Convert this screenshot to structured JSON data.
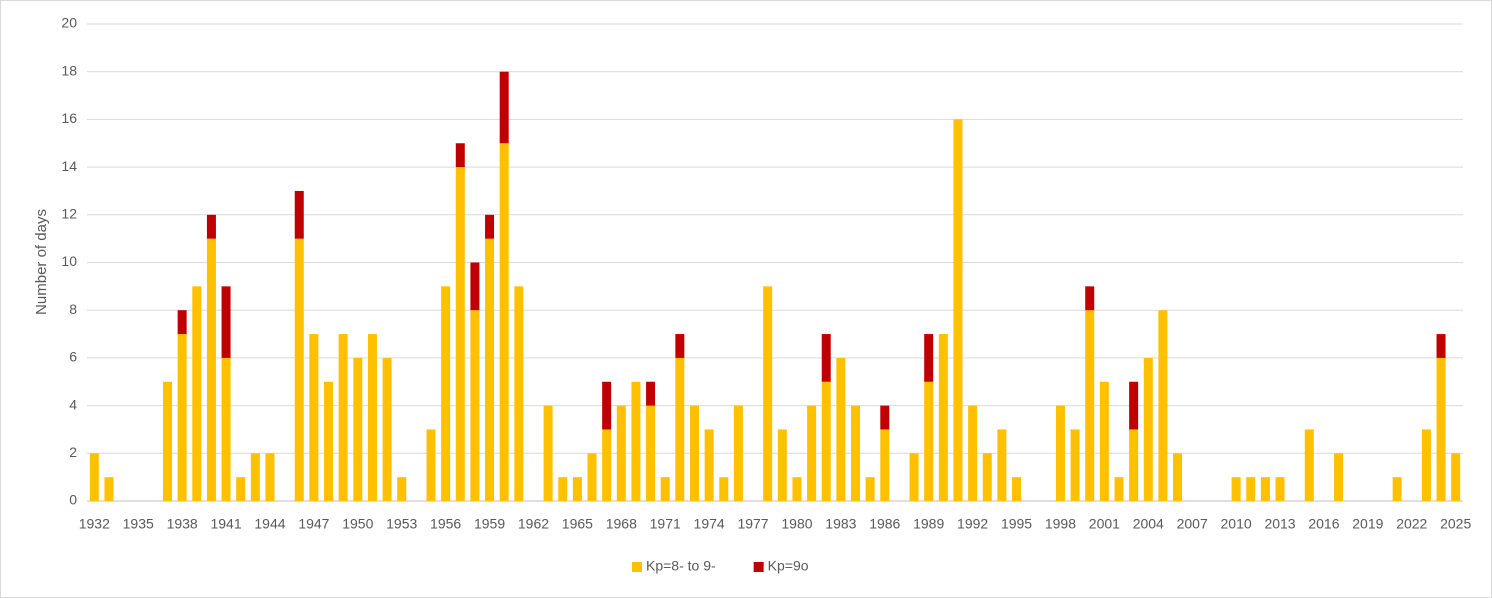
{
  "chart_data": {
    "type": "stacked_bar",
    "y_label": "Number of days",
    "categories": [
      "1932",
      null,
      null,
      "1935",
      null,
      null,
      "1938",
      null,
      null,
      "1941",
      null,
      null,
      "1944",
      null,
      null,
      "1947",
      null,
      null,
      "1950",
      null,
      null,
      "1953",
      null,
      null,
      "1956",
      null,
      null,
      "1959",
      null,
      null,
      "1962",
      null,
      null,
      "1965",
      null,
      null,
      "1968",
      null,
      null,
      "1971",
      null,
      null,
      "1974",
      null,
      null,
      "1977",
      null,
      null,
      "1980",
      null,
      null,
      "1983",
      null,
      null,
      "1986",
      null,
      null,
      "1989",
      null,
      null,
      "1992",
      null,
      null,
      "1995",
      null,
      null,
      "1998",
      null,
      null,
      "2001",
      null,
      null,
      "2004",
      null,
      null,
      "2007",
      null,
      null,
      "2010",
      null,
      null,
      "2013",
      null,
      null,
      "2016",
      null,
      null,
      "2019",
      null,
      null,
      "2022",
      null,
      null,
      "2025"
    ],
    "series": [
      {
        "name": "Kp=8- to 9-",
        "color": "#FFC000",
        "values": [
          2,
          1,
          0,
          0,
          0,
          5,
          7,
          9,
          11,
          6,
          1,
          2,
          2,
          0,
          11,
          7,
          5,
          7,
          6,
          7,
          6,
          1,
          0,
          3,
          9,
          14,
          8,
          11,
          15,
          9,
          0,
          4,
          1,
          1,
          2,
          3,
          4,
          5,
          4,
          1,
          6,
          4,
          3,
          1,
          4,
          0,
          9,
          3,
          1,
          4,
          5,
          6,
          4,
          1,
          3,
          0,
          2,
          5,
          7,
          16,
          4,
          2,
          3,
          1,
          0,
          0,
          4,
          3,
          8,
          5,
          1,
          3,
          6,
          8,
          2,
          0,
          0,
          0,
          1,
          1,
          1,
          1,
          0,
          3,
          0,
          2,
          0,
          0,
          0,
          1,
          0,
          3,
          6,
          2
        ]
      },
      {
        "name": "Kp=9o",
        "color": "#C00000",
        "values": [
          0,
          0,
          0,
          0,
          0,
          0,
          1,
          0,
          1,
          3,
          0,
          0,
          0,
          0,
          2,
          0,
          0,
          0,
          0,
          0,
          0,
          0,
          0,
          0,
          0,
          1,
          2,
          1,
          3,
          0,
          0,
          0,
          0,
          0,
          0,
          2,
          0,
          0,
          1,
          0,
          1,
          0,
          0,
          0,
          0,
          0,
          0,
          0,
          0,
          0,
          2,
          0,
          0,
          0,
          1,
          0,
          0,
          2,
          0,
          0,
          0,
          0,
          0,
          0,
          0,
          0,
          0,
          0,
          1,
          0,
          0,
          2,
          0,
          0,
          0,
          0,
          0,
          0,
          0,
          0,
          0,
          0,
          0,
          0,
          0,
          0,
          0,
          0,
          0,
          0,
          0,
          0,
          1,
          0
        ]
      }
    ],
    "ylim": [
      0,
      20
    ],
    "yticks": [
      0,
      2,
      4,
      6,
      8,
      10,
      12,
      14,
      16,
      18,
      20
    ],
    "grid": true,
    "legend": "bottom"
  }
}
